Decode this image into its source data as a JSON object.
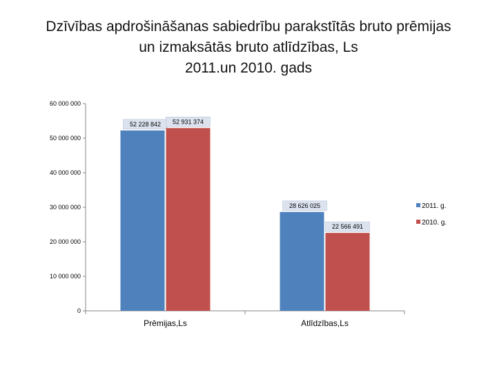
{
  "chart_data": {
    "type": "bar",
    "title_lines": [
      "Dzīvības apdrošināšanas sabiedrību parakstītās bruto prēmijas",
      "un izmaksātās bruto atlīdzības, Ls",
      "2011.un 2010. gads"
    ],
    "categories": [
      "Prēmijas,Ls",
      "Atlīdzības,Ls"
    ],
    "series": [
      {
        "name": "2011. g.",
        "values": [
          52228842,
          28626025
        ],
        "labels": [
          "52 228 842",
          "28 626 025"
        ],
        "color": "#4F81BD"
      },
      {
        "name": "2010. g.",
        "values": [
          52931374,
          22566491
        ],
        "labels": [
          "52 931 374",
          "22 566 491"
        ],
        "color": "#C0504D"
      }
    ],
    "ylim": [
      0,
      60000000
    ],
    "y_ticks": [
      0,
      10000000,
      20000000,
      30000000,
      40000000,
      50000000,
      60000000
    ],
    "y_tick_labels": [
      "0",
      "10 000 000",
      "20 000 000",
      "30 000 000",
      "40 000 000",
      "50 000 000",
      "60 000 000"
    ],
    "grid": false,
    "legend_position": "right"
  }
}
